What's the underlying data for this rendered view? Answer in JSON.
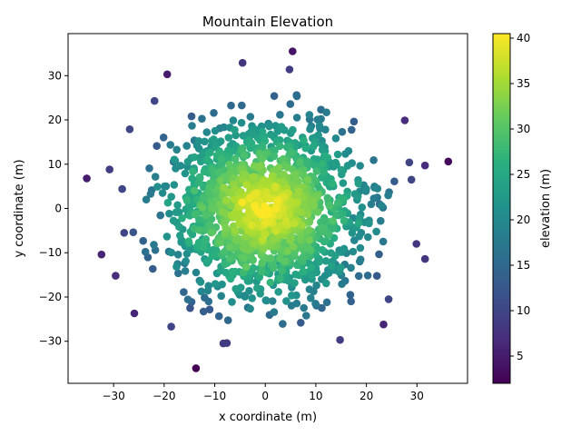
{
  "chart_data": {
    "type": "scatter",
    "title": "Mountain Elevation",
    "xlabel": "x coordinate (m)",
    "ylabel": "y coordinate (m)",
    "xlim": [
      -39,
      40
    ],
    "ylim": [
      -39.5,
      39.5
    ],
    "xticks": [
      -30,
      -20,
      -10,
      0,
      10,
      20,
      30
    ],
    "yticks": [
      -30,
      -20,
      -10,
      0,
      10,
      20,
      30
    ],
    "grid": false,
    "colorbar": {
      "label": "elevation (m)",
      "colormap": "viridis",
      "range": [
        2,
        40.5
      ],
      "ticks": [
        5,
        10,
        15,
        20,
        25,
        30,
        35,
        40
      ]
    },
    "model": {
      "description": "elevation decreases with distance from the origin",
      "peak": 40.5,
      "decay_per_m": 1.0,
      "point_count": 1500
    },
    "outliers": [
      {
        "x": -35.3,
        "y": 6.8,
        "elevation": 5
      },
      {
        "x": 36.2,
        "y": 10.6,
        "elevation": 3
      },
      {
        "x": -13.7,
        "y": -36.1,
        "elevation": 2
      },
      {
        "x": 5.4,
        "y": 35.5,
        "elevation": 4
      },
      {
        "x": -19.4,
        "y": 30.3,
        "elevation": 5
      },
      {
        "x": -32.4,
        "y": -10.4,
        "elevation": 6
      },
      {
        "x": -29.6,
        "y": -15.2,
        "elevation": 7
      },
      {
        "x": 31.6,
        "y": 9.7,
        "elevation": 7
      },
      {
        "x": 31.6,
        "y": -11.4,
        "elevation": 8
      },
      {
        "x": 29.9,
        "y": -8.0,
        "elevation": 8
      },
      {
        "x": -30.8,
        "y": 8.8,
        "elevation": 9
      },
      {
        "x": -25.9,
        "y": -23.7,
        "elevation": 6
      },
      {
        "x": 27.6,
        "y": 19.9,
        "elevation": 7
      },
      {
        "x": 23.4,
        "y": -26.2,
        "elevation": 6
      },
      {
        "x": -4.5,
        "y": 32.9,
        "elevation": 8
      },
      {
        "x": 4.8,
        "y": 31.4,
        "elevation": 9
      },
      {
        "x": 14.8,
        "y": -29.7,
        "elevation": 9
      },
      {
        "x": -8.3,
        "y": -30.5,
        "elevation": 9
      },
      {
        "x": -7.6,
        "y": -30.4,
        "elevation": 9
      },
      {
        "x": 28.9,
        "y": 6.5,
        "elevation": 10
      },
      {
        "x": 28.5,
        "y": 10.4,
        "elevation": 10
      },
      {
        "x": -28.3,
        "y": 4.4,
        "elevation": 10
      },
      {
        "x": -27.9,
        "y": -5.5,
        "elevation": 10
      },
      {
        "x": -18.6,
        "y": -26.7,
        "elevation": 10
      },
      {
        "x": -21.9,
        "y": 24.3,
        "elevation": 10
      },
      {
        "x": 24.4,
        "y": -20.5,
        "elevation": 10
      },
      {
        "x": -26.8,
        "y": 17.9,
        "elevation": 10
      }
    ]
  }
}
